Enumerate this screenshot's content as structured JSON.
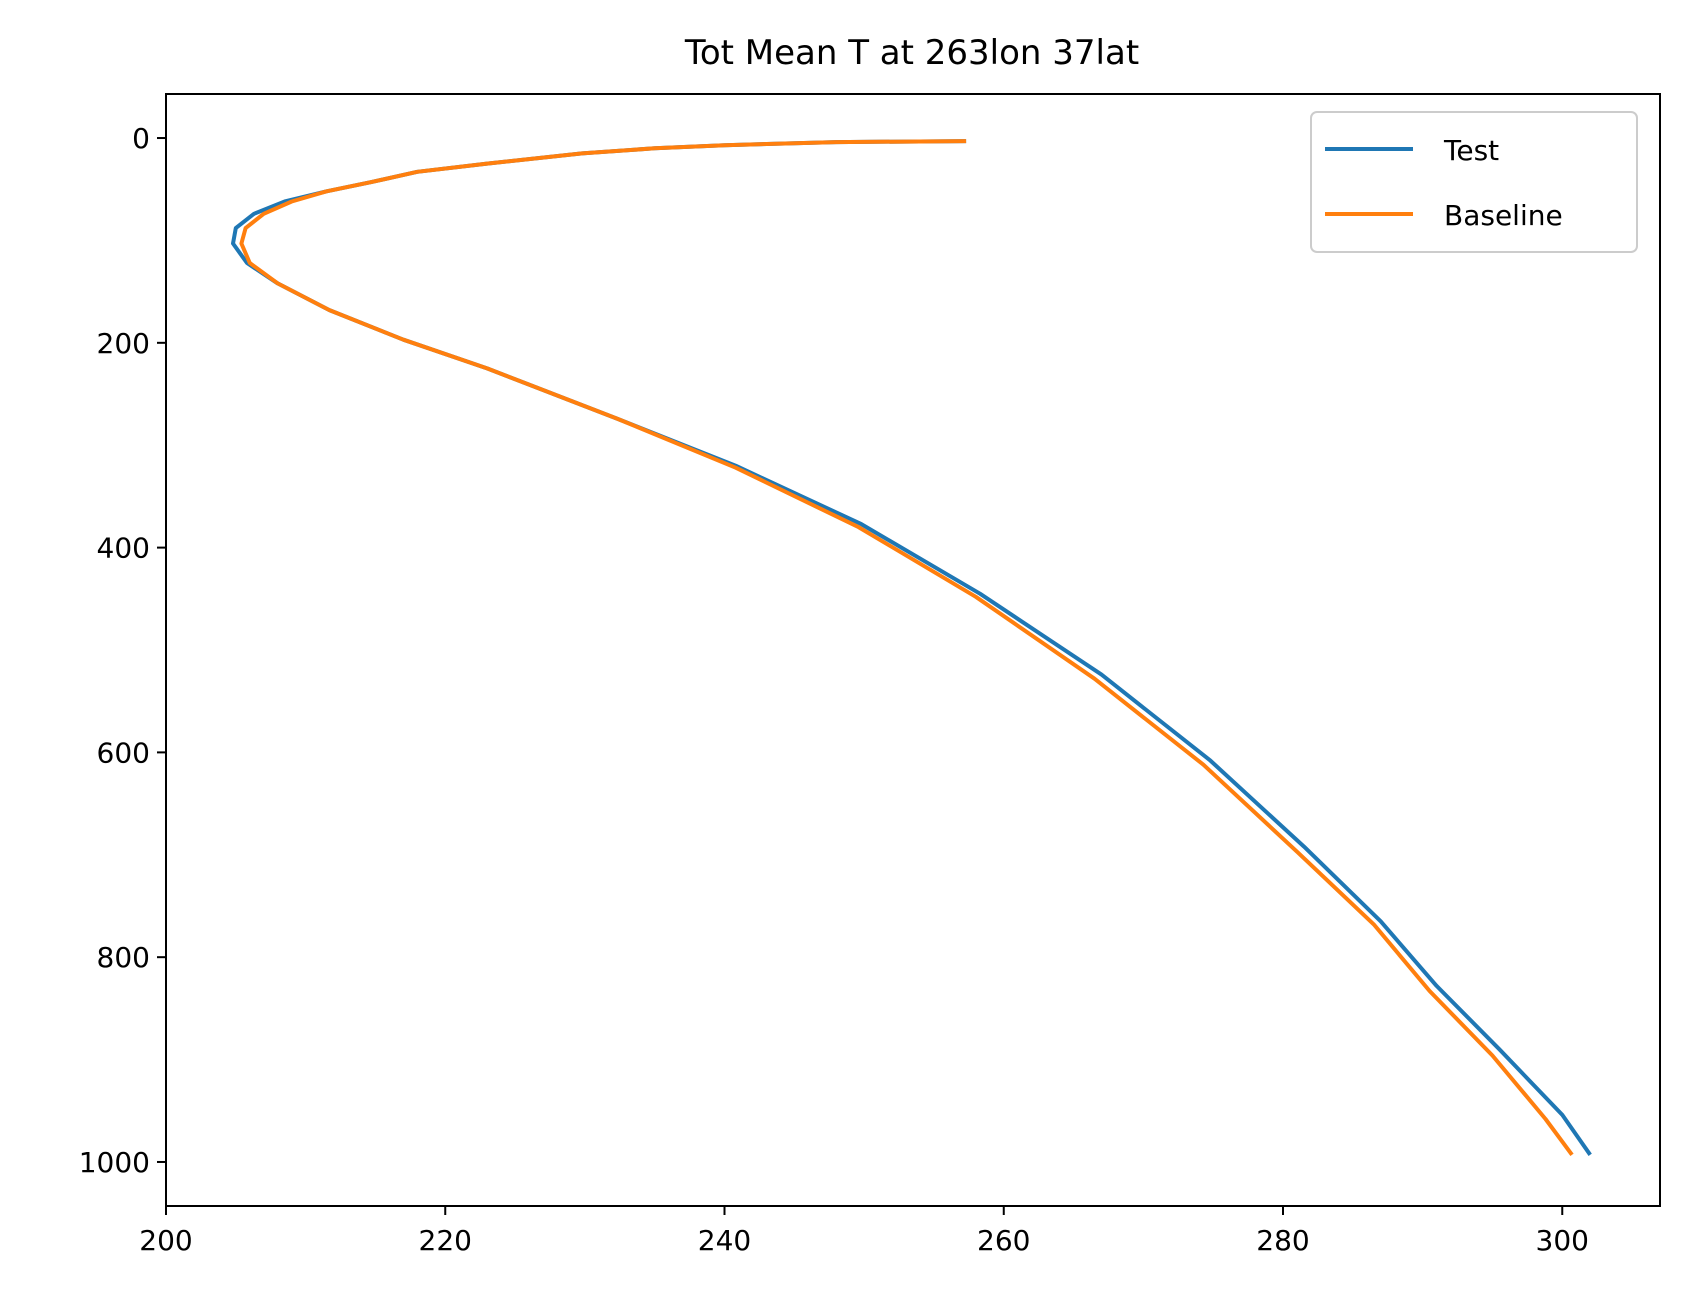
{
  "chart_data": {
    "type": "line",
    "title": "Tot Mean T at 263lon 37lat",
    "xlabel": "",
    "ylabel": "",
    "xlim": [
      200,
      307
    ],
    "ylim": [
      1043,
      -43
    ],
    "y_inverted": true,
    "grid": false,
    "legend_position": "top-right",
    "x_ticks": [
      200,
      220,
      240,
      260,
      280,
      300
    ],
    "y_ticks": [
      0,
      200,
      400,
      600,
      800,
      1000
    ],
    "series": [
      {
        "name": "Test",
        "color": "#1f77b4",
        "points": [
          [
            257.3,
            3
          ],
          [
            248,
            4
          ],
          [
            240,
            7
          ],
          [
            235,
            10
          ],
          [
            229.8,
            15
          ],
          [
            223,
            25
          ],
          [
            218,
            33
          ],
          [
            214.7,
            43
          ],
          [
            211.5,
            52
          ],
          [
            208.5,
            62
          ],
          [
            206.3,
            74
          ],
          [
            205,
            88
          ],
          [
            204.8,
            103
          ],
          [
            205.8,
            122
          ],
          [
            208,
            142
          ],
          [
            211.7,
            168
          ],
          [
            217,
            197
          ],
          [
            223,
            225
          ],
          [
            232.3,
            274
          ],
          [
            240.8,
            320
          ],
          [
            249.8,
            377
          ],
          [
            258.3,
            445
          ],
          [
            267,
            524
          ],
          [
            274.8,
            608
          ],
          [
            281.5,
            692
          ],
          [
            287,
            765
          ],
          [
            291,
            828
          ],
          [
            295.5,
            890
          ],
          [
            300,
            954
          ],
          [
            302,
            993
          ]
        ]
      },
      {
        "name": "Baseline",
        "color": "#ff7f0e",
        "points": [
          [
            257.3,
            3
          ],
          [
            248,
            4
          ],
          [
            240,
            7
          ],
          [
            235,
            10
          ],
          [
            229.8,
            15
          ],
          [
            223,
            25
          ],
          [
            218,
            33
          ],
          [
            214.7,
            43
          ],
          [
            211.5,
            52
          ],
          [
            209,
            62
          ],
          [
            207,
            74
          ],
          [
            205.7,
            88
          ],
          [
            205.4,
            103
          ],
          [
            206,
            122
          ],
          [
            208,
            142
          ],
          [
            211.7,
            168
          ],
          [
            217,
            197
          ],
          [
            223,
            225
          ],
          [
            232.3,
            274
          ],
          [
            240.8,
            322
          ],
          [
            249.6,
            380
          ],
          [
            258,
            448
          ],
          [
            266.5,
            528
          ],
          [
            274.3,
            612
          ],
          [
            281,
            697
          ],
          [
            286.5,
            768
          ],
          [
            290.5,
            833
          ],
          [
            295,
            896
          ],
          [
            298.8,
            958
          ],
          [
            300.7,
            993
          ]
        ]
      }
    ]
  }
}
